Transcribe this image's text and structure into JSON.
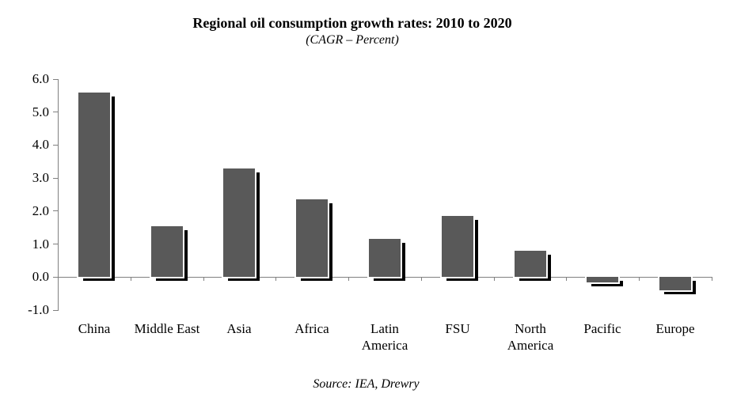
{
  "header": {
    "title": "Regional oil consumption growth rates: 2010 to 2020",
    "subtitle": "(CAGR – Percent)"
  },
  "footer": {
    "source": "Source: IEA, Drewry"
  },
  "chart_data": {
    "type": "bar",
    "title": "Regional oil consumption growth rates: 2010 to 2020",
    "subtitle": "(CAGR – Percent)",
    "categories": [
      "China",
      "Middle East",
      "Asia",
      "Africa",
      "Latin America",
      "FSU",
      "North America",
      "Pacific",
      "Europe"
    ],
    "values": [
      5.6,
      1.55,
      3.3,
      2.35,
      1.15,
      1.85,
      0.8,
      -0.15,
      -0.4
    ],
    "value_unit": "CAGR percent",
    "xlabel": "",
    "ylabel": "",
    "ylim": [
      -1.0,
      6.0
    ],
    "yticks": [
      6.0,
      5.0,
      4.0,
      3.0,
      2.0,
      1.0,
      0.0,
      -1.0
    ],
    "grid": false,
    "legend": false,
    "bar_color": "#595959",
    "shadow_color": "#000000",
    "axis_color": "#808080",
    "text_color": "#000000",
    "source": "Source: IEA, Drewry"
  }
}
